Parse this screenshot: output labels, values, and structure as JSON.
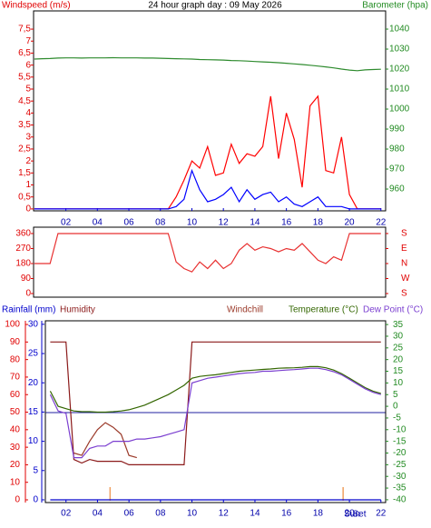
{
  "chart_data": [
    {
      "type": "line",
      "title": "24 hour graph day : 09 May 2026",
      "y_label": "Windspeed (m/s)",
      "y2_label": "Barometer (hpa)",
      "x": [
        0,
        0.5,
        1,
        1.5,
        2,
        2.5,
        3,
        3.5,
        4,
        4.5,
        5,
        5.5,
        6,
        6.5,
        7,
        7.5,
        8,
        8.5,
        9,
        9.5,
        10,
        10.5,
        11,
        11.5,
        12,
        12.5,
        13,
        13.5,
        14,
        14.5,
        15,
        15.5,
        16,
        16.5,
        17,
        17.5,
        18,
        18.5,
        19,
        19.5,
        20,
        20.5,
        21,
        21.5,
        22
      ],
      "xlim": [
        -0.05,
        22.3
      ],
      "xticks": [
        {
          "value": 2,
          "label": "02"
        },
        {
          "value": 4,
          "label": "04"
        },
        {
          "value": 6,
          "label": "06"
        },
        {
          "value": 8,
          "label": "08"
        },
        10,
        12,
        14,
        16,
        18,
        20,
        22
      ],
      "ylim": [
        -0.08,
        8.26
      ],
      "yticks": [
        0,
        {
          "value": 0.5,
          "label": "0,5"
        },
        1,
        {
          "value": 1.5,
          "label": "1,5"
        },
        2,
        {
          "value": 2.5,
          "label": "2,5"
        },
        3,
        {
          "value": 3.5,
          "label": "3,5"
        },
        4,
        {
          "value": 4.5,
          "label": "4,5"
        },
        5,
        {
          "value": 5.5,
          "label": "5,5"
        },
        6,
        {
          "value": 6.5,
          "label": "6,5"
        },
        7,
        {
          "value": 7.5,
          "label": "7,5"
        }
      ],
      "y2lim": [
        949.1,
        1049.1
      ],
      "y2ticks": [
        960,
        970,
        980,
        990,
        1000,
        1010,
        1020,
        1030,
        1040
      ],
      "series": [
        {
          "color": "#ff0000",
          "values": [
            0,
            0,
            0,
            0,
            0,
            0,
            0,
            0,
            0,
            0,
            0,
            0,
            0,
            0,
            0,
            0,
            0,
            0,
            0.5,
            1.2,
            2.0,
            1.7,
            2.6,
            1.4,
            1.5,
            2.7,
            1.9,
            2.3,
            2.2,
            2.6,
            4.7,
            2.1,
            4.0,
            2.9,
            0.9,
            4.3,
            4.7,
            1.6,
            1.5,
            3.0,
            0.6,
            0,
            0,
            0,
            0
          ]
        },
        {
          "color": "#0000ff",
          "values": [
            0,
            0,
            0,
            0,
            0,
            0,
            0,
            0,
            0,
            0,
            0,
            0,
            0,
            0,
            0,
            0,
            0,
            0,
            0.1,
            0.4,
            1.6,
            0.8,
            0.3,
            0.4,
            0.6,
            0.9,
            0.3,
            0.8,
            0.4,
            0.6,
            0.7,
            0.3,
            0.5,
            0.2,
            0.1,
            0.3,
            0.5,
            0.1,
            0.1,
            0.1,
            0,
            0,
            0,
            0,
            0
          ]
        },
        {
          "color": "#2e8b2e",
          "axis": "y2",
          "values": [
            1025.0,
            1025.2,
            1025.3,
            1025.5,
            1025.6,
            1025.6,
            1025.5,
            1025.6,
            1025.6,
            1025.6,
            1025.7,
            1025.6,
            1025.6,
            1025.6,
            1025.5,
            1025.5,
            1025.4,
            1025.3,
            1025.2,
            1025.1,
            1025.0,
            1024.8,
            1024.7,
            1024.6,
            1024.5,
            1024.3,
            1024.2,
            1024.0,
            1023.8,
            1023.6,
            1023.4,
            1023.2,
            1022.9,
            1022.6,
            1022.3,
            1021.9,
            1021.5,
            1021.1,
            1020.6,
            1020.0,
            1019.5,
            1019.2,
            1019.6,
            1019.8,
            1019.9
          ]
        }
      ]
    },
    {
      "type": "line",
      "x": [
        0,
        0.5,
        1,
        1.5,
        2,
        2.5,
        3,
        3.5,
        4,
        4.5,
        5,
        5.5,
        6,
        6.5,
        7,
        7.5,
        8,
        8.5,
        9,
        9.5,
        10,
        10.5,
        11,
        11.5,
        12,
        12.5,
        13,
        13.5,
        14,
        14.5,
        15,
        15.5,
        16,
        16.5,
        17,
        17.5,
        18,
        18.5,
        19,
        19.5,
        20,
        20.5,
        21,
        21.5,
        22
      ],
      "xlim": [
        -0.05,
        22.3
      ],
      "ylim": [
        -21.8,
        398
      ],
      "yticks": [
        0,
        90,
        180,
        270,
        360
      ],
      "y2lim": [
        -21.8,
        398
      ],
      "y2ticks": [
        {
          "value": 0,
          "label": "S"
        },
        {
          "value": 90,
          "label": "W"
        },
        {
          "value": 180,
          "label": "N"
        },
        {
          "value": 270,
          "label": "E"
        },
        {
          "value": 360,
          "label": "S"
        }
      ],
      "series": [
        {
          "color": "#e83030",
          "values": [
            180,
            180,
            180,
            360,
            360,
            360,
            360,
            360,
            360,
            360,
            360,
            360,
            360,
            360,
            360,
            360,
            360,
            360,
            190,
            150,
            130,
            190,
            150,
            200,
            150,
            180,
            260,
            300,
            260,
            280,
            270,
            250,
            270,
            260,
            300,
            250,
            200,
            180,
            220,
            200,
            360,
            360,
            360,
            360,
            360
          ]
        }
      ]
    },
    {
      "type": "line",
      "x": [
        1,
        1.5,
        2,
        2.5,
        3,
        3.5,
        4,
        4.5,
        5,
        5.5,
        6,
        6.5,
        7,
        7.5,
        8,
        8.5,
        9,
        9.5,
        10,
        10.5,
        11,
        11.5,
        12,
        12.5,
        13,
        13.5,
        14,
        14.5,
        15,
        15.5,
        16,
        16.5,
        17,
        17.5,
        18,
        18.5,
        19,
        19.5,
        20,
        20.5,
        21,
        21.5,
        22
      ],
      "xlim": [
        0.69,
        22.3
      ],
      "xticks": [
        {
          "value": 2,
          "label": "02"
        },
        {
          "value": 4,
          "label": "04"
        },
        {
          "value": 6,
          "label": "06"
        },
        {
          "value": 8,
          "label": "08"
        },
        10,
        12,
        14,
        16,
        18,
        20,
        22
      ],
      "ylim": [
        -1.55,
        102.1
      ],
      "yticks": [
        0,
        10,
        20,
        30,
        40,
        50,
        60,
        70,
        80,
        90,
        100
      ],
      "y3lim": [
        -0.47,
        30.6
      ],
      "y3ticks": [
        0,
        5,
        10,
        15,
        20,
        25,
        30
      ],
      "y2lim": [
        -41.2,
        36.6
      ],
      "y2ticks": [
        -40,
        -35,
        -30,
        -25,
        -20,
        -15,
        -10,
        -5,
        0,
        5,
        10,
        15,
        20,
        25,
        30,
        35
      ],
      "sun_markers": [
        4.8,
        19.6
      ],
      "annotations": [
        "Sun",
        "Set"
      ],
      "series": [
        {
          "name": "Rainfall (mm)",
          "color": "#0000cc",
          "axis": "y3",
          "values": [
            0,
            0,
            0,
            0,
            0,
            0,
            0,
            0,
            0,
            0,
            0,
            0,
            0,
            0,
            0,
            0,
            0,
            0,
            0,
            0,
            0,
            0,
            0,
            0,
            0,
            0,
            0,
            0,
            0,
            0,
            0,
            0,
            0,
            0,
            0,
            0,
            0,
            0,
            0,
            0,
            0,
            0,
            0
          ]
        },
        {
          "name": "Humidity",
          "color": "#8b1a1a",
          "values": [
            90,
            90,
            90,
            23,
            21,
            23,
            22,
            22,
            22,
            22,
            20,
            20,
            20,
            20,
            20,
            20,
            20,
            20,
            90,
            90,
            90,
            90,
            90,
            90,
            90,
            90,
            90,
            90,
            90,
            90,
            90,
            90,
            90,
            90,
            90,
            90,
            90,
            90,
            90,
            90,
            90,
            90,
            90
          ]
        },
        {
          "name": "Windchill",
          "color": "#9b3a2a",
          "axis": "y2",
          "values": [
            null,
            null,
            null,
            -20,
            -21,
            -15,
            -10,
            -7,
            -9,
            -12,
            -21,
            -22,
            null,
            null,
            null,
            null,
            null,
            null,
            null,
            null,
            null,
            null,
            null,
            null,
            null,
            null,
            null,
            null,
            null,
            null,
            null,
            null,
            null,
            null,
            null,
            null,
            null,
            null,
            null,
            null,
            null,
            null,
            null
          ]
        },
        {
          "name": "Temperature (°C)",
          "color": "#336600",
          "axis": "y2",
          "values": [
            6.5,
            0,
            -1,
            -2,
            -2.3,
            -2.3,
            -2.5,
            -2.5,
            -2.3,
            -2,
            -1.5,
            -0.5,
            0.5,
            2,
            3.5,
            5,
            7,
            9,
            12,
            12.8,
            13.2,
            13.5,
            14,
            14.5,
            15,
            15.3,
            15.5,
            15.8,
            16,
            16.3,
            16.4,
            16.5,
            16.7,
            17,
            17,
            16.5,
            15.5,
            14,
            12,
            10,
            8,
            6.5,
            5.5
          ]
        },
        {
          "name": "Dew Point (°C)",
          "color": "#7b3fd0",
          "axis": "y2",
          "values": [
            5,
            -2,
            -3,
            -22,
            -22,
            -18,
            -17,
            -17,
            -15,
            -15,
            -15,
            -14,
            -14,
            -13.5,
            -13,
            -12,
            -11,
            -10,
            10,
            11,
            12,
            12.5,
            13,
            13.5,
            14,
            14.3,
            14.5,
            15,
            15,
            15.3,
            15.5,
            15.7,
            16,
            16.3,
            16.3,
            15.7,
            14.8,
            13.5,
            11.5,
            9.5,
            7.5,
            6,
            5
          ]
        }
      ]
    }
  ]
}
